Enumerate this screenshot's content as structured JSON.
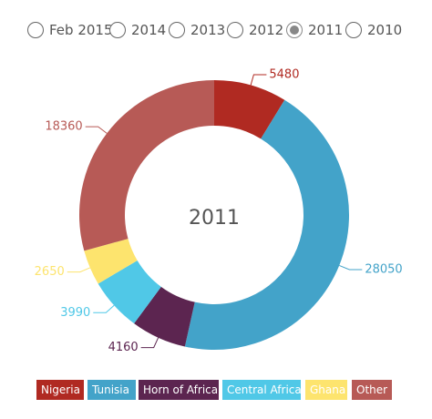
{
  "year_selector": {
    "options": [
      "Feb 2015",
      "2014",
      "2013",
      "2012",
      "2011",
      "2010"
    ],
    "selected": "2011"
  },
  "chart_data": {
    "type": "pie",
    "variant": "donut",
    "center_label": "2011",
    "categories": [
      "Nigeria",
      "Tunisia",
      "Horn of Africa",
      "Central Africa",
      "Ghana",
      "Other"
    ],
    "values": [
      5480,
      28050,
      4160,
      3990,
      2650,
      18360
    ],
    "colors": [
      "#b02a22",
      "#43a3c9",
      "#5c2550",
      "#50c8e7",
      "#fde46e",
      "#b75a56"
    ],
    "legend_position": "bottom"
  }
}
